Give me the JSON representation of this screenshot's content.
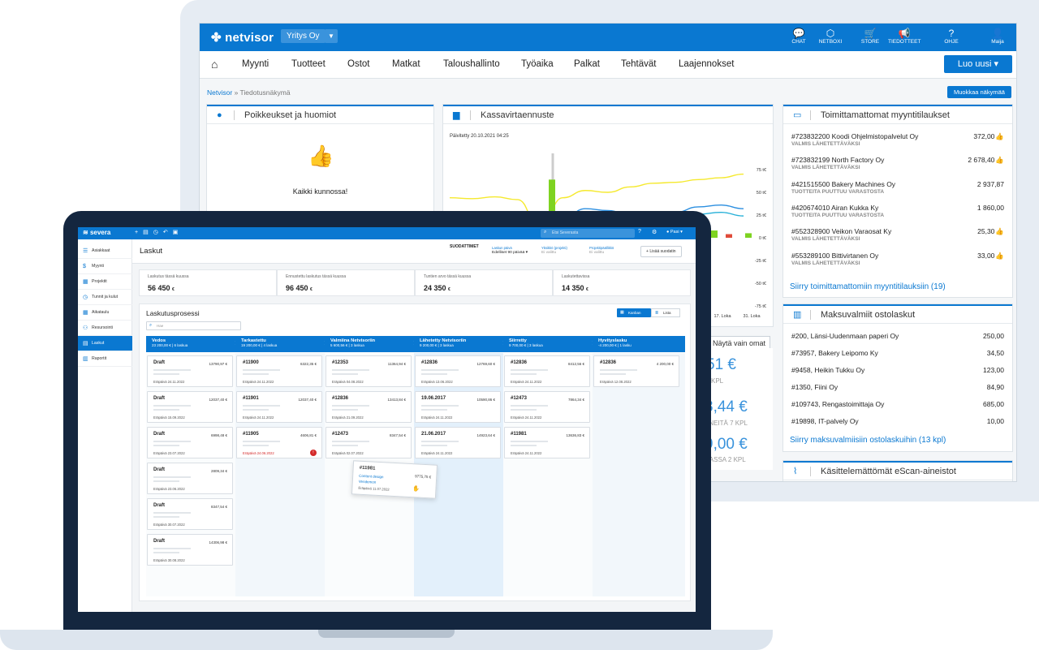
{
  "netvisor": {
    "logo": "netvisor",
    "company": "Yritys Oy",
    "top_icons": [
      {
        "icon": "chat-icon",
        "label": "CHAT"
      },
      {
        "icon": "box-icon",
        "label": "NETBOXI"
      },
      {
        "icon": "cart-icon",
        "label": "STORE"
      },
      {
        "icon": "megaphone-icon",
        "label": "TIEDOTTEET"
      },
      {
        "icon": "help-icon",
        "label": "OHJE"
      },
      {
        "icon": "user-icon",
        "label": "Maija"
      }
    ],
    "menu": [
      "Myynti",
      "Tuotteet",
      "Ostot",
      "Matkat",
      "Taloushallinto",
      "Työaika",
      "Palkat",
      "Tehtävät",
      "Laajennokset"
    ],
    "new_button": "Luo uusi",
    "breadcrumb_root": "Netvisor",
    "breadcrumb_sep": "»",
    "breadcrumb_current": "Tiedotusnäkymä",
    "edit_view_button": "Muokkaa näkymää",
    "exceptions": {
      "title": "Poikkeukset ja huomiot",
      "message": "Kaikki kunnossa!"
    },
    "cashflow": {
      "title": "Kassavirtaennuste",
      "updated": "Päivitetty 20.10.2021 04:25",
      "show_own_button": "Näytä vain omat"
    },
    "orders": {
      "title": "Toimittamattomat myyntitilaukset",
      "rows": [
        {
          "name": "#723832200 Koodi Ohjelmistopalvelut Oy",
          "status": "VALMIS LÄHETETTÄVÄKSI",
          "amount": "372,00",
          "ok": true
        },
        {
          "name": "#723832199 North Factory Oy",
          "status": "VALMIS LÄHETETTÄVÄKSI",
          "amount": "2 678,40",
          "ok": true
        },
        {
          "name": "#421515500 Bakery Machines Oy",
          "status": "TUOTTEITA PUUTTUU VARASTOSTA",
          "amount": "2 937,87",
          "ok": false
        },
        {
          "name": "#420674010 Airan Kukka Ky",
          "status": "TUOTTEITA PUUTTUU VARASTOSTA",
          "amount": "1 860,00",
          "ok": false
        },
        {
          "name": "#552328900 Veikon Varaosat Ky",
          "status": "VALMIS LÄHETETTÄVÄKSI",
          "amount": "25,30",
          "ok": true
        },
        {
          "name": "#553289100 Bittivirtanen Oy",
          "status": "VALMIS LÄHETETTÄVÄKSI",
          "amount": "33,00",
          "ok": true
        }
      ],
      "link": "Siirry toimittamattomiin myyntitilauksiin (19)"
    },
    "purchases": {
      "title": "Maksuvalmiit ostolaskut",
      "rows": [
        {
          "name": "#200, Länsi-Uudenmaan paperi Oy",
          "amount": "250,00"
        },
        {
          "name": "#73957, Bakery Leipomo Ky",
          "amount": "34,50"
        },
        {
          "name": "#9458, Heikin Tukku Oy",
          "amount": "123,00"
        },
        {
          "name": "#1350, Fiini Oy",
          "amount": "84,90"
        },
        {
          "name": "#109743, Rengastoimittaja Oy",
          "amount": "685,00"
        },
        {
          "name": "#19898, IT-palvely Oy",
          "amount": "10,00"
        }
      ],
      "link": "Siirry maksuvalmiisiin ostolaskuihin (13 kpl)"
    },
    "escan": {
      "title": "Käsittelemättömät eScan-aineistot"
    },
    "partial_kpis": [
      {
        "value": "51 €",
        "sub": "KPL"
      },
      {
        "value": "3,44 €",
        "sub": "YNEITÄ 7 KPL"
      },
      {
        "value": "9,00 €",
        "sub": "NASSA 2 KPL"
      }
    ]
  },
  "chart_data": {
    "type": "line",
    "title": "Kassavirtaennuste",
    "subtitle": "Päivitetty 20.10.2021 04:25",
    "y_tick_labels": [
      "75 t€",
      "50 t€",
      "25 t€",
      "0 t€",
      "-25 t€",
      "-50 t€",
      "-75 t€"
    ],
    "ylim": [
      -75,
      75
    ],
    "x_tick_labels": [
      "17. Loka",
      "31. Loka"
    ],
    "series": [
      {
        "values": [
          44,
          43,
          45,
          42,
          10,
          44,
          52,
          50,
          56,
          60,
          61,
          64,
          66,
          70
        ]
      },
      {
        "values": [
          22,
          23,
          21,
          20,
          -8,
          20,
          32,
          30,
          24,
          22,
          28,
          34,
          36,
          32
        ]
      },
      {
        "values": [
          18,
          18,
          17,
          16,
          -2,
          16,
          26,
          24,
          20,
          18,
          22,
          26,
          28,
          24
        ]
      }
    ],
    "bars": [
      {
        "value": 64,
        "color": "#7ed321"
      },
      {
        "value": 6,
        "color": "#f0a030"
      },
      {
        "value": -10,
        "color": "#e8467c"
      },
      {
        "value": 8,
        "color": "#7ed321"
      },
      {
        "value": 4,
        "color": "#e04b3a"
      },
      {
        "value": 5,
        "color": "#7ed321"
      }
    ],
    "colors": {
      "line1": "#f5e92e",
      "line2": "#2c8fe0",
      "line3": "#26b0d8"
    }
  },
  "severa": {
    "logo": "severa",
    "search_placeholder": "Etsi Severasta",
    "user": "Pasi",
    "sidebar": [
      {
        "icon": "list-icon",
        "label": "Asiakkaat"
      },
      {
        "icon": "dollar-icon",
        "label": "Myynti"
      },
      {
        "icon": "folder-icon",
        "label": "Projektit"
      },
      {
        "icon": "clock-icon",
        "label": "Tunnit ja kulut"
      },
      {
        "icon": "calendar-icon",
        "label": "Aikataulu"
      },
      {
        "icon": "people-icon",
        "label": "Resursointi"
      },
      {
        "icon": "invoice-icon",
        "label": "Laskut",
        "active": true
      },
      {
        "icon": "report-icon",
        "label": "Raportit"
      }
    ],
    "page_title": "Laskut",
    "filters": {
      "title": "SUODATTIMET",
      "items": [
        {
          "label": "Laskun päivä",
          "value": "Edelliset 90 päivää"
        },
        {
          "label": "Yksikkö (projekti)",
          "value": "Ei valittu"
        },
        {
          "label": "Projektipäällikkö",
          "value": "Ei valittu"
        }
      ],
      "add_button": "Lisää suodatin"
    },
    "kpis": [
      {
        "label": "Laskutus tässä kuussa",
        "value": "56 450",
        "unit": "€"
      },
      {
        "label": "Ennustettu laskutus tässä kuussa",
        "value": "96 450",
        "unit": "€"
      },
      {
        "label": "Tuntien arvo tässä kuussa",
        "value": "24 350",
        "unit": "€"
      },
      {
        "label": "Laskutettavissa",
        "value": "14 350",
        "unit": "€"
      }
    ],
    "process_title": "Laskutusprosessi",
    "filter_placeholder": "Hae",
    "view_kanban": "Kanban",
    "view_list": "Lista",
    "stages": [
      {
        "name": "Vedos",
        "sum": "23 200,00 €",
        "count": "6 laskua"
      },
      {
        "name": "Tarkastettu",
        "sum": "19 200,00 €",
        "count": "4 laskua"
      },
      {
        "name": "Valmiina Netvisoriin",
        "sum": "5 600,56 €",
        "count": "3 laskua"
      },
      {
        "name": "Lähetetty Netvisoriin",
        "sum": "9 200,00 €",
        "count": "3 laskua"
      },
      {
        "name": "Siirretty",
        "sum": "9 700,00 €",
        "count": "3 laskua"
      },
      {
        "name": "Hyvityslasku",
        "sum": "-4 200,00 €",
        "count": "1 lasku"
      }
    ],
    "columns": [
      [
        {
          "title": "Draft",
          "amount": "13790,97 €",
          "due": "Eräpäivä  24.11.2022"
        },
        {
          "title": "Draft",
          "amount": "12037,40 €",
          "due": "Eräpäivä  15.09.2022"
        },
        {
          "title": "Draft",
          "amount": "6998,48 €",
          "due": "Eräpäivä  23.07.2022"
        },
        {
          "title": "Draft",
          "amount": "2809,34 €",
          "due": "Eräpäivä  23.06.2022"
        },
        {
          "title": "Draft",
          "amount": "8347,54 €",
          "due": "Eräpäivä  30.07.2022"
        },
        {
          "title": "Draft",
          "amount": "14306,98 €",
          "due": "Eräpäivä  30.08.2022"
        }
      ],
      [
        {
          "title": "#11900",
          "amount": "6322,35 €",
          "due": "Eräpäivä  24.11.2022"
        },
        {
          "title": "#11901",
          "amount": "12037,40 €",
          "due": "Eräpäivä  24.11.2022"
        },
        {
          "title": "#11905",
          "amount": "4606,81 €",
          "due": "Eräpäivä  24.06.2022",
          "overdue": true
        }
      ],
      [
        {
          "title": "#12353",
          "amount": "11364,94 €",
          "due": "Eräpäivä  04.08.2022"
        },
        {
          "title": "#12836",
          "amount": "13413,84 €",
          "due": "Eräpäivä  21.09.2022"
        },
        {
          "title": "#12473",
          "amount": "8347,54 €",
          "due": "Eräpäivä  02.07.2022"
        }
      ],
      [
        {
          "title": "#12836",
          "amount": "12769,60 €",
          "due": "Eräpäivä  13.06.2022"
        },
        {
          "title": "19.06.2017",
          "amount": "10590,86 €",
          "due": "Eräpäivä  24.11.2022"
        },
        {
          "title": "21.06.2017",
          "amount": "14923,64 €",
          "due": "Eräpäivä  24.11.2022"
        }
      ],
      [
        {
          "title": "#12836",
          "amount": "8412,56 €",
          "due": "Eräpäivä  24.11.2022"
        },
        {
          "title": "#12473",
          "amount": "7864,34 €",
          "due": "Eräpäivä  24.11.2022"
        },
        {
          "title": "#11981",
          "amount": "13636,83 €",
          "due": "Eräpäivä  24.11.2022"
        }
      ],
      [
        {
          "title": "#12836",
          "amount": "4 200,00 €",
          "due": "Eräpäivä  12.08.2022"
        }
      ]
    ],
    "dragged_card": {
      "title": "#11981",
      "amount": "9775,75 €",
      "project": "Content design",
      "customer": "Vendemon",
      "due": "Eräpäivä  11.07.2022"
    }
  }
}
